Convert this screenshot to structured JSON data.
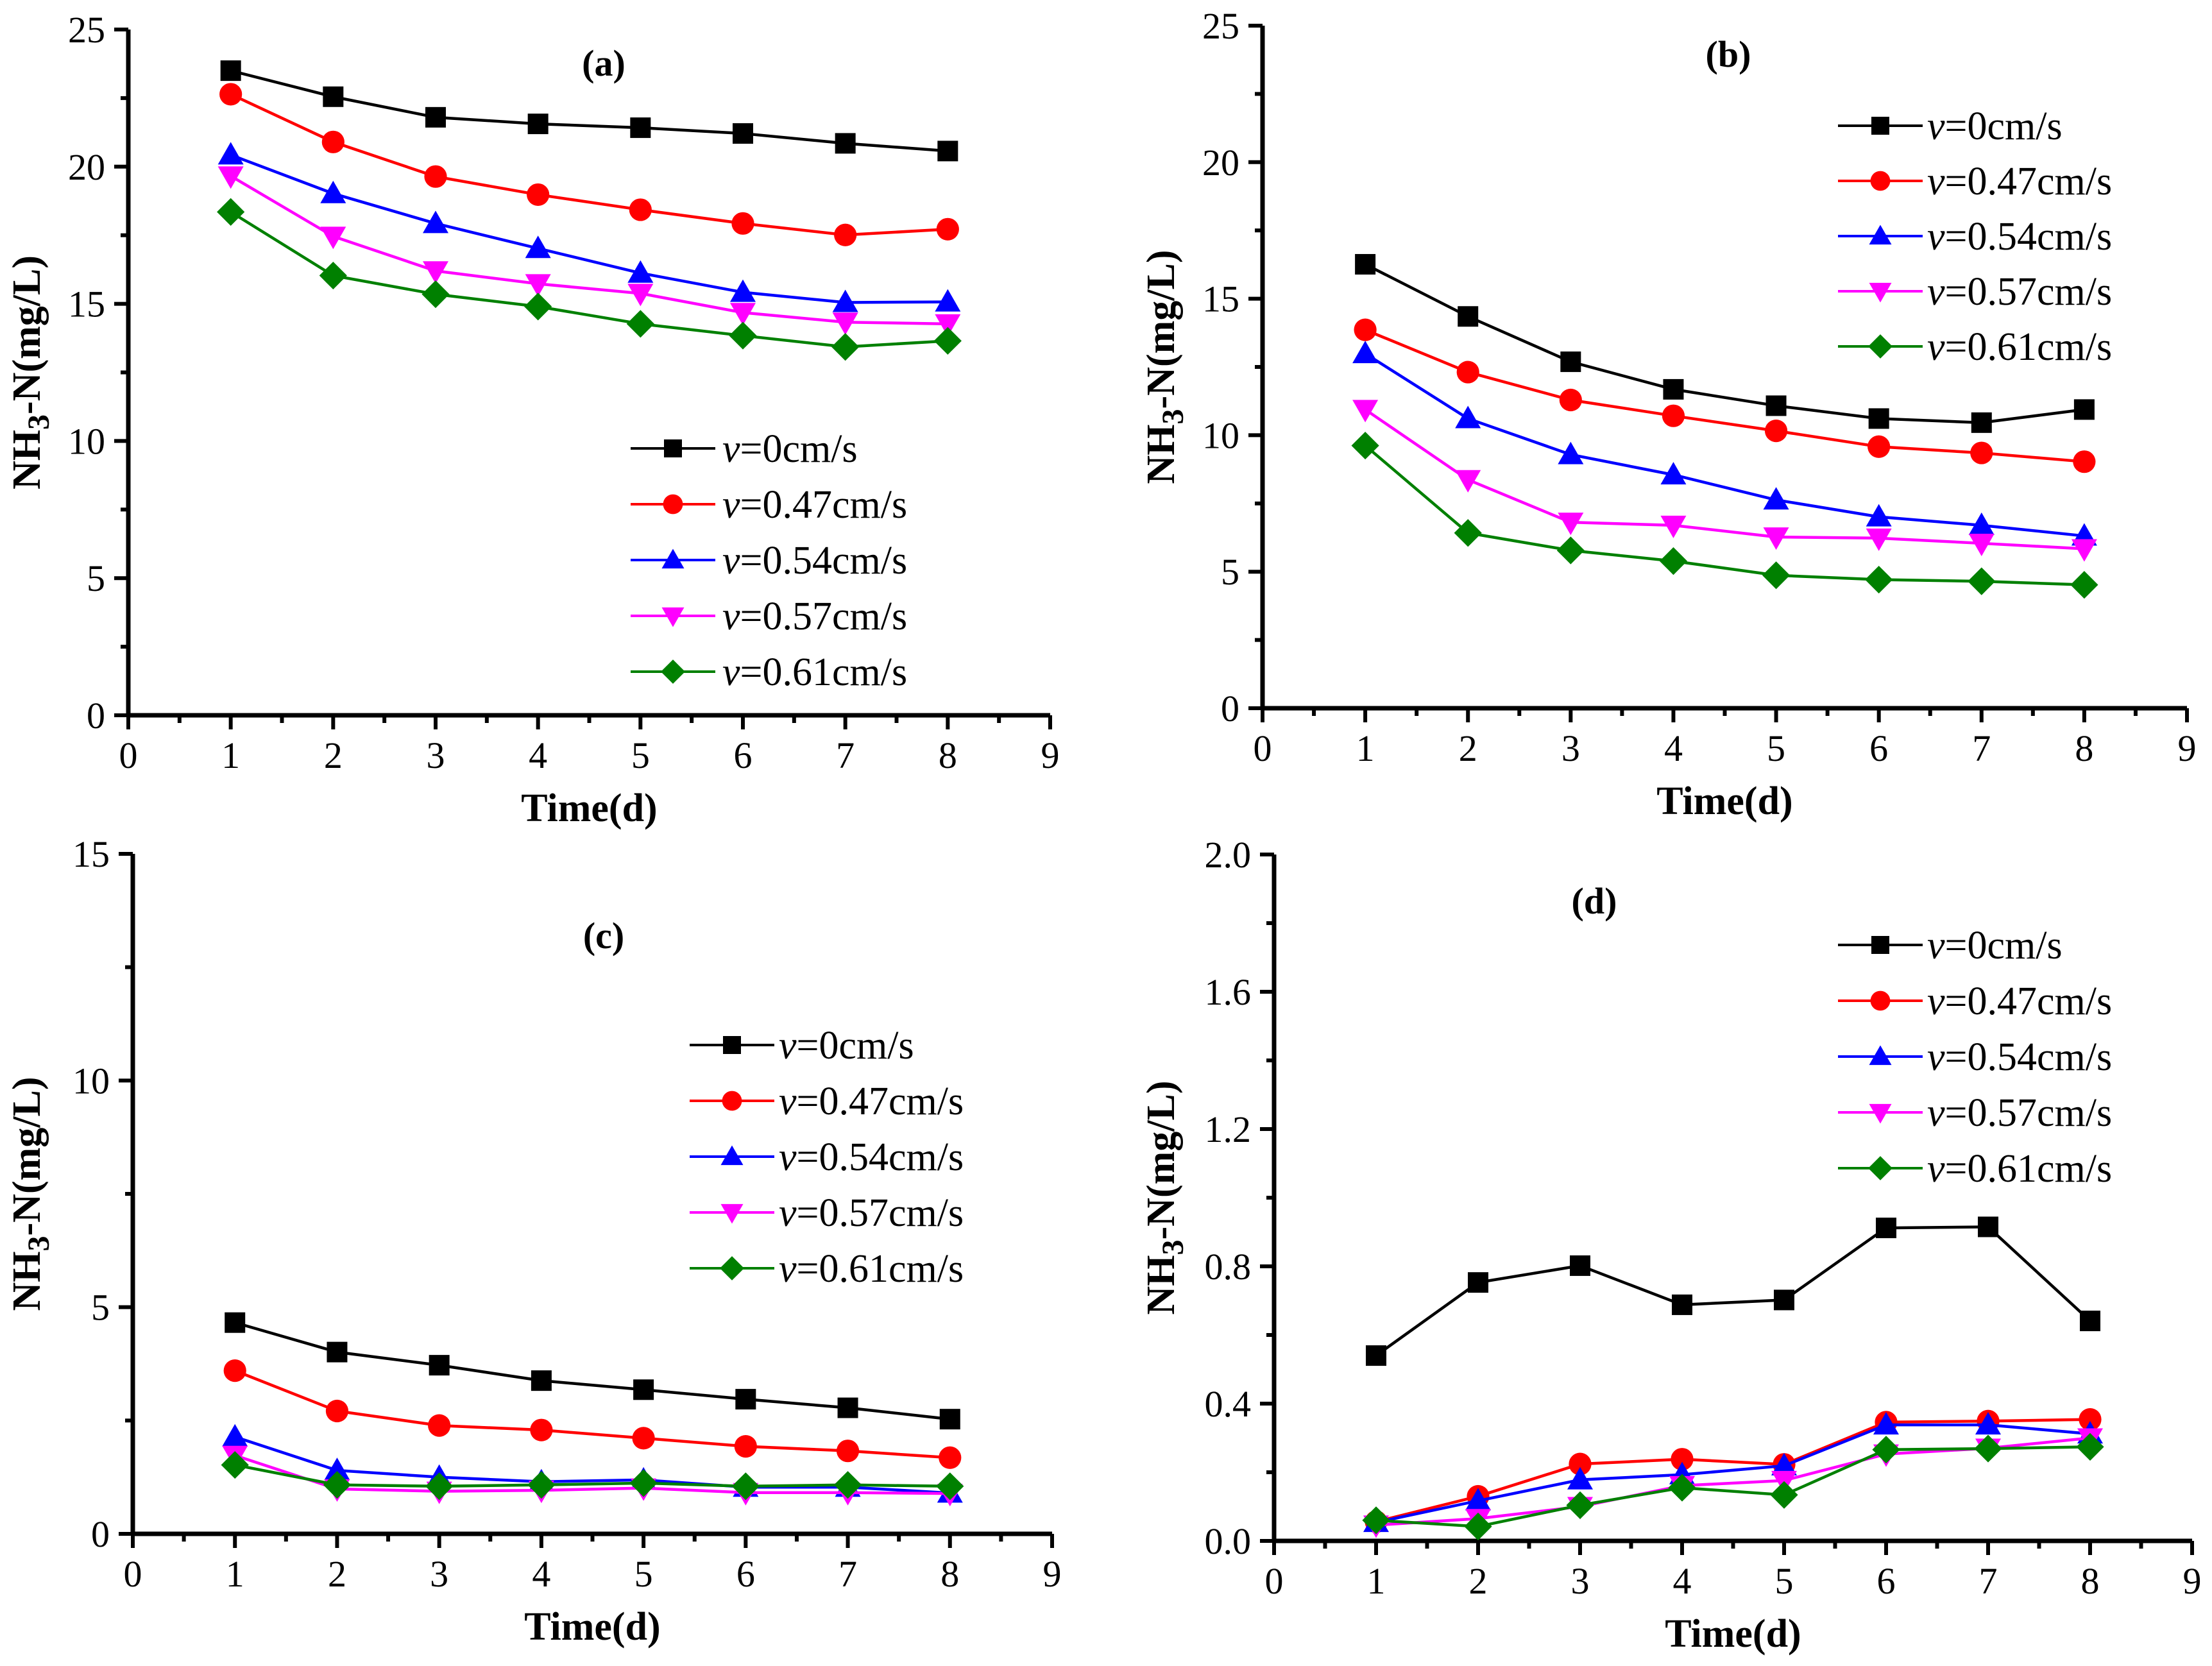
{
  "chart_data": [
    {
      "type": "line",
      "panel": "a",
      "title": "(a)",
      "xlabel": "Time(d)",
      "ylabel": "NH3-N(mg/L)",
      "ylabel_main": "NH",
      "ylabel_sub": "3",
      "ylabel_rest": "-N(mg/L)",
      "xlim": [
        0,
        9
      ],
      "ylim": [
        0,
        25
      ],
      "xticks": [
        0,
        1,
        2,
        3,
        4,
        5,
        6,
        7,
        8,
        9
      ],
      "yticks": [
        0,
        5,
        10,
        15,
        20,
        25
      ],
      "yticklabels": [
        "0",
        "5",
        "10",
        "15",
        "20",
        "25"
      ],
      "legend_position": "lower-right",
      "x": [
        1,
        2,
        3,
        4,
        5,
        6,
        7,
        8
      ],
      "series": [
        {
          "name": "v=0cm/s",
          "v": "v",
          "rest": "=0cm/s",
          "color": "#000000",
          "marker": "square",
          "values": [
            23.5,
            22.55,
            21.8,
            21.56,
            21.42,
            21.21,
            20.85,
            20.57
          ]
        },
        {
          "name": "v=0.47cm/s",
          "v": "v",
          "rest": "=0.47cm/s",
          "color": "#ff0000",
          "marker": "circle",
          "values": [
            22.64,
            20.9,
            19.64,
            18.98,
            18.43,
            17.93,
            17.51,
            17.72
          ]
        },
        {
          "name": "v=0.54cm/s",
          "v": "v",
          "rest": "=0.54cm/s",
          "color": "#0000ff",
          "marker": "triangle-up",
          "values": [
            20.43,
            19.02,
            17.93,
            17.02,
            16.12,
            15.42,
            15.05,
            15.07
          ]
        },
        {
          "name": "v=0.57cm/s",
          "v": "v",
          "rest": "=0.57cm/s",
          "color": "#ff00ff",
          "marker": "triangle-down",
          "values": [
            19.66,
            17.46,
            16.2,
            15.73,
            15.38,
            14.68,
            14.33,
            14.27
          ]
        },
        {
          "name": "v=0.61cm/s",
          "v": "v",
          "rest": "=0.61cm/s",
          "color": "#008000",
          "marker": "diamond",
          "values": [
            18.35,
            16.03,
            15.35,
            14.9,
            14.27,
            13.84,
            13.43,
            13.65
          ]
        }
      ]
    },
    {
      "type": "line",
      "panel": "b",
      "title": "(b)",
      "xlabel": "Time(d)",
      "ylabel": "NH3-N(mg/L)",
      "ylabel_main": "NH",
      "ylabel_sub": "3",
      "ylabel_rest": "-N(mg/L)",
      "xlim": [
        0,
        9
      ],
      "ylim": [
        0,
        25
      ],
      "xticks": [
        0,
        1,
        2,
        3,
        4,
        5,
        6,
        7,
        8,
        9
      ],
      "yticks": [
        0,
        5,
        10,
        15,
        20,
        25
      ],
      "yticklabels": [
        "0",
        "5",
        "10",
        "15",
        "20",
        "25"
      ],
      "legend_position": "top-right",
      "x": [
        1,
        2,
        3,
        4,
        5,
        6,
        7,
        8
      ],
      "series": [
        {
          "name": "v=0cm/s",
          "v": "v",
          "rest": "=0cm/s",
          "color": "#000000",
          "marker": "square",
          "values": [
            16.26,
            14.35,
            12.69,
            11.68,
            11.08,
            10.61,
            10.46,
            10.94
          ]
        },
        {
          "name": "v=0.47cm/s",
          "v": "v",
          "rest": "=0.47cm/s",
          "color": "#ff0000",
          "marker": "circle",
          "values": [
            13.86,
            12.31,
            11.29,
            10.71,
            10.16,
            9.58,
            9.35,
            9.03
          ]
        },
        {
          "name": "v=0.54cm/s",
          "v": "v",
          "rest": "=0.54cm/s",
          "color": "#0000ff",
          "marker": "triangle-up",
          "values": [
            12.99,
            10.61,
            9.29,
            8.55,
            7.63,
            7.01,
            6.7,
            6.31
          ]
        },
        {
          "name": "v=0.57cm/s",
          "v": "v",
          "rest": "=0.57cm/s",
          "color": "#ff00ff",
          "marker": "triangle-down",
          "values": [
            10.94,
            8.37,
            6.81,
            6.7,
            6.27,
            6.23,
            6.04,
            5.84
          ]
        },
        {
          "name": "v=0.61cm/s",
          "v": "v",
          "rest": "=0.61cm/s",
          "color": "#008000",
          "marker": "diamond",
          "values": [
            9.62,
            6.42,
            5.78,
            5.39,
            4.87,
            4.71,
            4.65,
            4.52
          ]
        }
      ]
    },
    {
      "type": "line",
      "panel": "c",
      "title": "(c)",
      "xlabel": "Time(d)",
      "ylabel": "NH3-N(mg/L)",
      "ylabel_main": "NH",
      "ylabel_sub": "3",
      "ylabel_rest": "-N(mg/L)",
      "xlim": [
        0,
        9
      ],
      "ylim": [
        0,
        15
      ],
      "xticks": [
        0,
        1,
        2,
        3,
        4,
        5,
        6,
        7,
        8,
        9
      ],
      "yticks": [
        0,
        5,
        10,
        15
      ],
      "yticklabels": [
        "0",
        "5",
        "10",
        "15"
      ],
      "legend_position": "right",
      "x": [
        1,
        2,
        3,
        4,
        5,
        6,
        7,
        8
      ],
      "series": [
        {
          "name": "v=0cm/s",
          "v": "v",
          "rest": "=0cm/s",
          "color": "#000000",
          "marker": "square",
          "values": [
            4.66,
            4.01,
            3.72,
            3.38,
            3.18,
            2.97,
            2.78,
            2.53
          ]
        },
        {
          "name": "v=0.47cm/s",
          "v": "v",
          "rest": "=0.47cm/s",
          "color": "#ff0000",
          "marker": "circle",
          "values": [
            3.6,
            2.71,
            2.39,
            2.29,
            2.11,
            1.93,
            1.83,
            1.68
          ]
        },
        {
          "name": "v=0.54cm/s",
          "v": "v",
          "rest": "=0.54cm/s",
          "color": "#0000ff",
          "marker": "triangle-up",
          "values": [
            2.14,
            1.4,
            1.25,
            1.15,
            1.19,
            1.03,
            1.03,
            0.9
          ]
        },
        {
          "name": "v=0.57cm/s",
          "v": "v",
          "rest": "=0.57cm/s",
          "color": "#ff00ff",
          "marker": "triangle-down",
          "values": [
            1.73,
            0.99,
            0.94,
            0.96,
            1.01,
            0.91,
            0.91,
            0.89
          ]
        },
        {
          "name": "v=0.61cm/s",
          "v": "v",
          "rest": "=0.61cm/s",
          "color": "#008000",
          "marker": "diamond",
          "values": [
            1.52,
            1.08,
            1.05,
            1.08,
            1.12,
            1.05,
            1.08,
            1.05
          ]
        }
      ]
    },
    {
      "type": "line",
      "panel": "d",
      "title": "(d)",
      "xlabel": "Time(d)",
      "ylabel": "NH3-N(mg/L)",
      "ylabel_main": "NH",
      "ylabel_sub": "3",
      "ylabel_rest": "-N(mg/L)",
      "xlim": [
        0,
        9
      ],
      "ylim": [
        0,
        2.0
      ],
      "xticks": [
        0,
        1,
        2,
        3,
        4,
        5,
        6,
        7,
        8,
        9
      ],
      "yticks": [
        0,
        0.4,
        0.8,
        1.2,
        1.6,
        2.0
      ],
      "yticklabels": [
        "0.0",
        "0.4",
        "0.8",
        "1.2",
        "1.6",
        "2.0"
      ],
      "legend_position": "top-right",
      "x": [
        1,
        2,
        3,
        4,
        5,
        6,
        7,
        8
      ],
      "series": [
        {
          "name": "v=0cm/s",
          "v": "v",
          "rest": "=0cm/s",
          "color": "#000000",
          "marker": "square",
          "values": [
            0.54,
            0.753,
            0.802,
            0.688,
            0.702,
            0.912,
            0.915,
            0.641
          ]
        },
        {
          "name": "v=0.47cm/s",
          "v": "v",
          "rest": "=0.47cm/s",
          "color": "#ff0000",
          "marker": "circle",
          "values": [
            0.056,
            0.13,
            0.224,
            0.238,
            0.223,
            0.346,
            0.349,
            0.354
          ]
        },
        {
          "name": "v=0.54cm/s",
          "v": "v",
          "rest": "=0.54cm/s",
          "color": "#0000ff",
          "marker": "triangle-up",
          "values": [
            0.054,
            0.117,
            0.178,
            0.193,
            0.219,
            0.338,
            0.338,
            0.312
          ]
        },
        {
          "name": "v=0.57cm/s",
          "v": "v",
          "rest": "=0.57cm/s",
          "color": "#ff00ff",
          "marker": "triangle-down",
          "values": [
            0.046,
            0.065,
            0.1,
            0.161,
            0.176,
            0.253,
            0.27,
            0.3
          ]
        },
        {
          "name": "v=0.61cm/s",
          "v": "v",
          "rest": "=0.61cm/s",
          "color": "#008000",
          "marker": "diamond",
          "values": [
            0.06,
            0.042,
            0.104,
            0.155,
            0.134,
            0.266,
            0.269,
            0.274
          ]
        }
      ]
    }
  ]
}
